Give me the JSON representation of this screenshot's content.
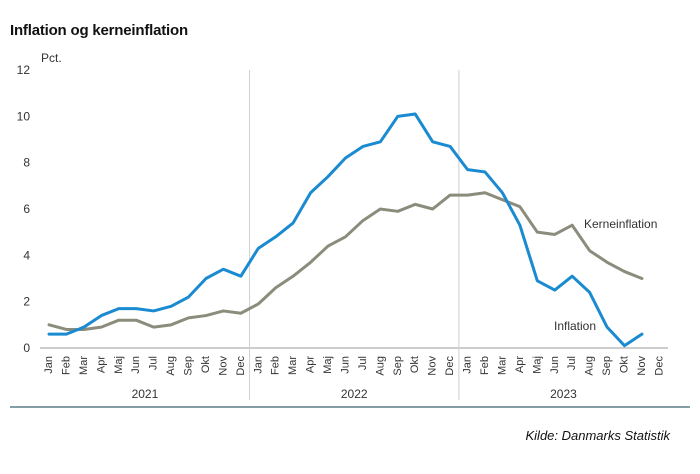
{
  "chart_data": {
    "type": "line",
    "title": "Inflation og kerneinflation",
    "ylabel": "Pct.",
    "xlabel": "",
    "ylim": [
      0,
      12
    ],
    "yticks": [
      0,
      2,
      4,
      6,
      8,
      10,
      12
    ],
    "grid": false,
    "months": [
      "Jan",
      "Feb",
      "Mar",
      "Apr",
      "Maj",
      "Jun",
      "Jul",
      "Aug",
      "Sep",
      "Okt",
      "Nov",
      "Dec"
    ],
    "years": [
      "2021",
      "2022",
      "2023"
    ],
    "series": [
      {
        "name": "Inflation",
        "color": "#1a8ad1",
        "values": [
          0.6,
          0.6,
          0.9,
          1.4,
          1.7,
          1.7,
          1.6,
          1.8,
          2.2,
          3.0,
          3.4,
          3.1,
          4.3,
          4.8,
          5.4,
          6.7,
          7.4,
          8.2,
          8.7,
          8.9,
          10.0,
          10.1,
          8.9,
          8.7,
          7.7,
          7.6,
          6.7,
          5.3,
          2.9,
          2.5,
          3.1,
          2.4,
          0.9,
          0.1,
          0.6
        ]
      },
      {
        "name": "Kerneinflation",
        "color": "#8c8c7c",
        "values": [
          1.0,
          0.8,
          0.8,
          0.9,
          1.2,
          1.2,
          0.9,
          1.0,
          1.3,
          1.4,
          1.6,
          1.5,
          1.9,
          2.6,
          3.1,
          3.7,
          4.4,
          4.8,
          5.5,
          6.0,
          5.9,
          6.2,
          6.0,
          6.6,
          6.6,
          6.7,
          6.4,
          6.1,
          5.0,
          4.9,
          5.3,
          4.2,
          3.7,
          3.3,
          3.0
        ]
      }
    ]
  },
  "source": "Kilde: Danmarks Statistik"
}
